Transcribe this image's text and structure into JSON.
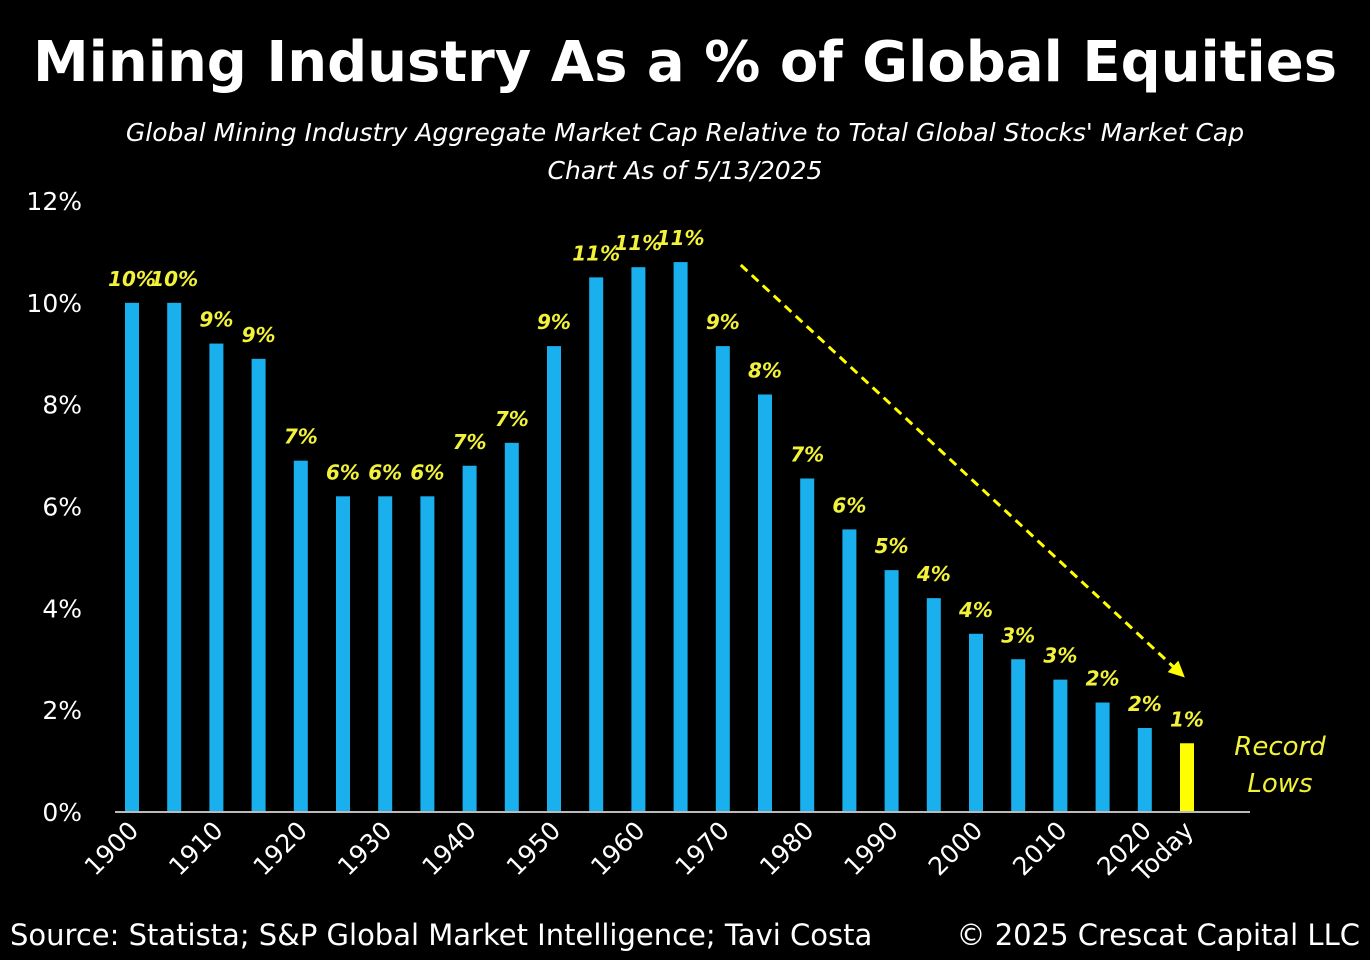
{
  "title": "Mining Industry As a % of Global Equities",
  "subtitle": "Global Mining Industry Aggregate Market Cap Relative to Total Global Stocks' Market Cap",
  "subtitle2": "Chart As of 5/13/2025",
  "source": "Source: Statista; S&P Global Market Intelligence; Tavi Costa",
  "copyright": "© 2025 Crescat Capital LLC",
  "colors": {
    "bar": "#1ab0ee",
    "highlight": "#ffff00",
    "label": "#f2f23a",
    "background": "#000000"
  },
  "chart_data": {
    "type": "bar",
    "title": "Mining Industry As a % of Global Equities",
    "categories": [
      "1900",
      "1905",
      "1910",
      "1915",
      "1920",
      "1925",
      "1930",
      "1935",
      "1940",
      "1945",
      "1950",
      "1955",
      "1960",
      "1965",
      "1970",
      "1975",
      "1980",
      "1985",
      "1990",
      "1995",
      "2000",
      "2005",
      "2010",
      "2015",
      "2020",
      "Today"
    ],
    "values": [
      10.0,
      10.0,
      9.2,
      8.9,
      6.9,
      6.2,
      6.2,
      6.2,
      6.8,
      7.25,
      9.15,
      10.5,
      10.7,
      10.8,
      9.15,
      8.2,
      6.55,
      5.55,
      4.75,
      4.2,
      3.5,
      3.0,
      2.6,
      2.15,
      1.65,
      1.35
    ],
    "data_labels": [
      "10%",
      "10%",
      "9%",
      "9%",
      "7%",
      "6%",
      "6%",
      "6%",
      "7%",
      "7%",
      "9%",
      "11%",
      "11%",
      "11%",
      "9%",
      "8%",
      "7%",
      "6%",
      "5%",
      "4%",
      "4%",
      "3%",
      "3%",
      "2%",
      "2%",
      "1%"
    ],
    "x_tick_labels": [
      "1900",
      "1910",
      "1920",
      "1930",
      "1940",
      "1950",
      "1960",
      "1970",
      "1980",
      "1990",
      "2000",
      "2010",
      "2020",
      "Today"
    ],
    "y_tick_labels": [
      "0%",
      "2%",
      "4%",
      "6%",
      "8%",
      "10%",
      "12%"
    ],
    "ylim": [
      0,
      12
    ],
    "grid": false,
    "highlight_category": "Today",
    "annotation": [
      "Record",
      "Lows"
    ],
    "trend_arrow": {
      "from": "1970",
      "to": "Today",
      "style": "dashed"
    }
  }
}
